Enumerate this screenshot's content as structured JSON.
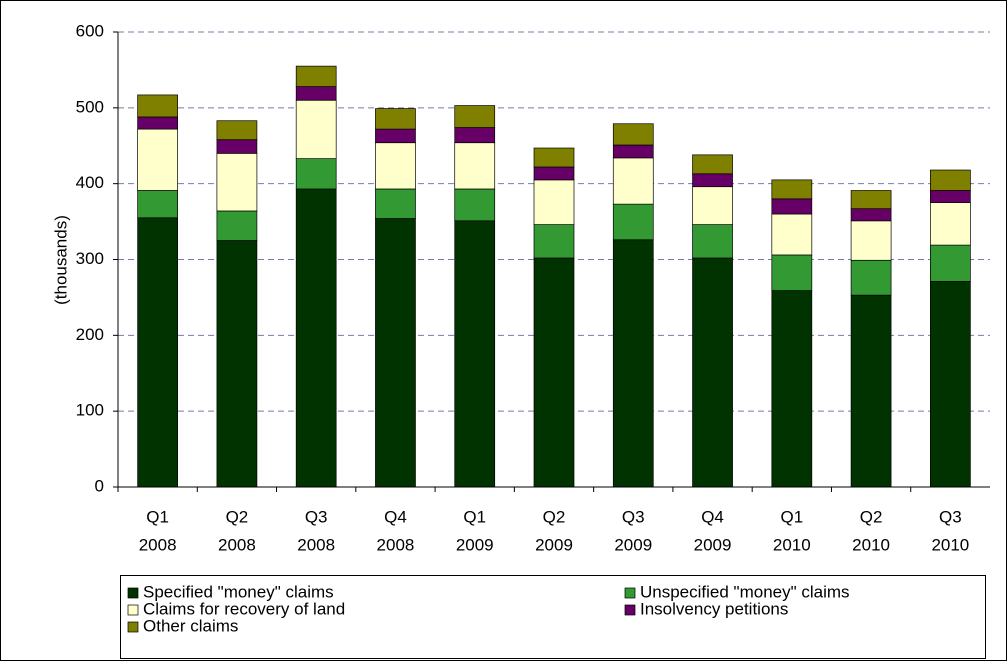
{
  "chart_data": {
    "type": "stacked_bar",
    "y_label": "(thousands)",
    "categories": [
      [
        "Q1",
        "2008"
      ],
      [
        "Q2",
        "2008"
      ],
      [
        "Q3",
        "2008"
      ],
      [
        "Q4",
        "2008"
      ],
      [
        "Q1",
        "2009"
      ],
      [
        "Q2",
        "2009"
      ],
      [
        "Q3",
        "2009"
      ],
      [
        "Q4",
        "2009"
      ],
      [
        "Q1",
        "2010"
      ],
      [
        "Q2",
        "2010"
      ],
      [
        "Q3",
        "2010"
      ]
    ],
    "series": [
      {
        "name": "Specified \"money\" claims",
        "color": "#003300",
        "values": [
          355,
          325,
          393,
          354,
          351,
          302,
          326,
          302,
          259,
          253,
          271
        ]
      },
      {
        "name": "Unspecified \"money\" claims",
        "color": "#339933",
        "values": [
          36,
          39,
          40,
          39,
          42,
          44,
          47,
          44,
          47,
          46,
          48
        ]
      },
      {
        "name": "Claims for recovery of land",
        "color": "#ffffcc",
        "values": [
          81,
          76,
          77,
          61,
          61,
          59,
          61,
          50,
          54,
          52,
          56
        ]
      },
      {
        "name": "Insolvency petitions",
        "color": "#660066",
        "values": [
          16,
          18,
          18,
          18,
          20,
          17,
          17,
          17,
          20,
          16,
          16
        ]
      },
      {
        "name": "Other claims",
        "color": "#808000",
        "values": [
          29,
          25,
          27,
          27,
          29,
          25,
          28,
          25,
          25,
          24,
          27
        ]
      }
    ],
    "ylim": [
      0,
      600
    ],
    "yticks": [
      0,
      100,
      200,
      300,
      400,
      500,
      600
    ],
    "grid": true
  }
}
